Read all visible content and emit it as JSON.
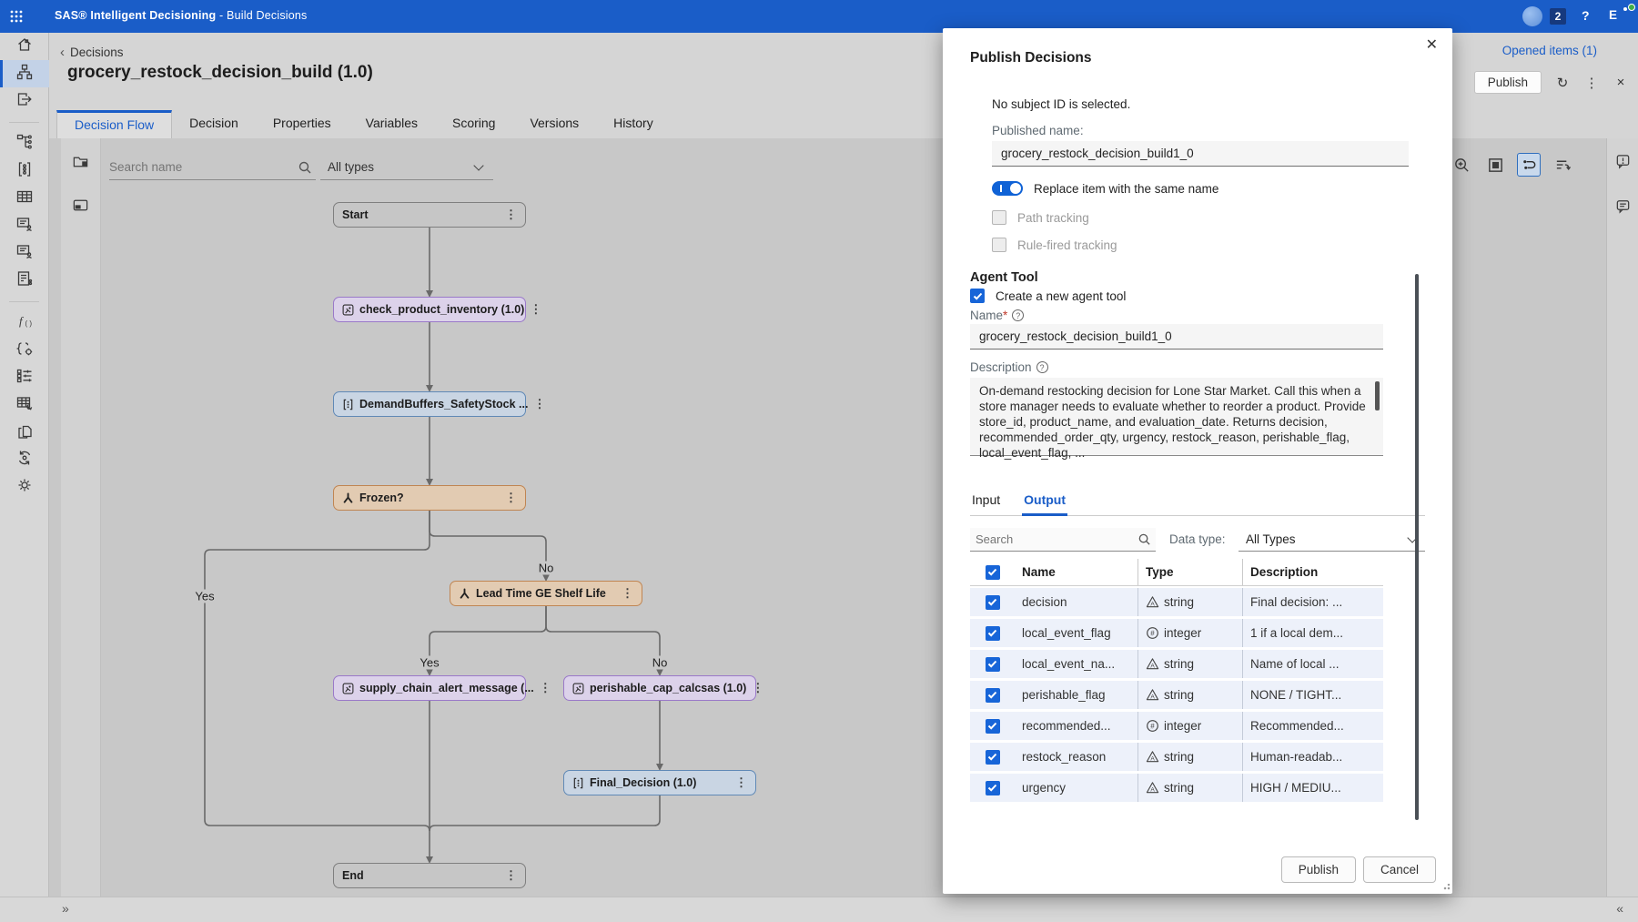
{
  "colors": {
    "accent": "#1a5dc8",
    "toggle_on": "#0f62d6",
    "checkbox": "#1765d8",
    "status_green": "#3fae49",
    "node_code": "#dcd2ea",
    "node_rule": "#c9d5e3",
    "node_branch": "#e2cbb2",
    "node_terminal": "#c6c6c6"
  },
  "topbar": {
    "app_title_bold": "SAS® Intelligent Decisioning",
    "app_title_rest": " - Build Decisions",
    "notifications_count": "2",
    "help_label": "?",
    "user_initial": "E"
  },
  "sidebar": {
    "items": [
      {
        "icon": "home",
        "name": "home"
      },
      {
        "icon": "flow",
        "name": "build-decisions",
        "active": true
      },
      {
        "icon": "export",
        "name": "publish-items"
      },
      {
        "divider": true
      },
      {
        "icon": "tree",
        "name": "decision-hierarchy"
      },
      {
        "icon": "ruleset",
        "name": "rule-sets"
      },
      {
        "icon": "grid",
        "name": "lookup-tables"
      },
      {
        "icon": "docuser",
        "name": "subject-contacts"
      },
      {
        "icon": "docuser",
        "name": "subject-records"
      },
      {
        "icon": "doclist",
        "name": "record-lists"
      },
      {
        "divider": true
      },
      {
        "icon": "fx",
        "name": "functions"
      },
      {
        "icon": "codegear",
        "name": "code-files"
      },
      {
        "icon": "sliders",
        "name": "global-variables"
      },
      {
        "icon": "gridwrench",
        "name": "data-tools"
      },
      {
        "icon": "tags",
        "name": "tags"
      },
      {
        "icon": "geararrows",
        "name": "workflows"
      },
      {
        "icon": "gear",
        "name": "settings"
      }
    ]
  },
  "header": {
    "breadcrumb": "Decisions",
    "title": "grocery_restock_decision_build (1.0)",
    "opened_items": "Opened items (1)",
    "publish_button": "Publish",
    "tabs": [
      {
        "label": "Decision Flow",
        "active": true
      },
      {
        "label": "Decision"
      },
      {
        "label": "Properties"
      },
      {
        "label": "Variables"
      },
      {
        "label": "Scoring"
      },
      {
        "label": "Versions"
      },
      {
        "label": "History"
      }
    ]
  },
  "canvas": {
    "search_placeholder": "Search name",
    "type_filter_value": "All types"
  },
  "flow": {
    "nodes": [
      {
        "id": "start",
        "label": "Start",
        "kind": "start"
      },
      {
        "id": "check",
        "label": "check_product_inventory (1.0)",
        "kind": "code"
      },
      {
        "id": "demand",
        "label": "DemandBuffers_SafetyStock ...",
        "kind": "rule"
      },
      {
        "id": "frozen",
        "label": "Frozen?",
        "kind": "branch"
      },
      {
        "id": "lead",
        "label": "Lead Time GE Shelf Life",
        "kind": "branch"
      },
      {
        "id": "supply",
        "label": "supply_chain_alert_message (...",
        "kind": "code"
      },
      {
        "id": "perishable",
        "label": "perishable_cap_calcsas (1.0)",
        "kind": "code"
      },
      {
        "id": "final",
        "label": "Final_Decision (1.0)",
        "kind": "rule"
      },
      {
        "id": "end",
        "label": "End",
        "kind": "end"
      }
    ],
    "edge_labels": [
      {
        "id": "frozen-yes",
        "text": "Yes"
      },
      {
        "id": "frozen-no",
        "text": "No"
      },
      {
        "id": "lead-yes",
        "text": "Yes"
      },
      {
        "id": "lead-no",
        "text": "No"
      }
    ]
  },
  "bottombar": {
    "collapse_left": "»",
    "collapse_right": "«"
  },
  "modal": {
    "title": "Publish Decisions",
    "subject_note": "No subject ID is selected.",
    "published_name_label": "Published name:",
    "published_name_value": "grocery_restock_decision_build1_0",
    "replace_toggle_label": "Replace item with the same name",
    "path_tracking_label": "Path tracking",
    "rule_fired_label": "Rule-fired tracking",
    "agent_tool_heading": "Agent Tool",
    "create_agent_label": "Create a new agent tool",
    "name_label": "Name",
    "name_required": "*",
    "name_value": "grocery_restock_decision_build1_0",
    "description_label": "Description",
    "description_value": "On-demand restocking decision for Lone Star Market. Call this when a store manager needs to evaluate whether to reorder a product. Provide store_id, product_name, and evaluation_date. Returns decision, recommended_order_qty, urgency, restock_reason, perishable_flag, local_event_flag, ...",
    "tabs": [
      {
        "label": "Input"
      },
      {
        "label": "Output",
        "active": true
      }
    ],
    "search_placeholder": "Search",
    "data_type_label": "Data type:",
    "data_type_value": "All Types",
    "table": {
      "columns": [
        "Name",
        "Type",
        "Description"
      ],
      "rows": [
        {
          "checked": true,
          "name": "decision",
          "type": "string",
          "description": "Final decision: ..."
        },
        {
          "checked": true,
          "name": "local_event_flag",
          "type": "integer",
          "description": "1 if a local dem..."
        },
        {
          "checked": true,
          "name": "local_event_na...",
          "type": "string",
          "description": "Name of local ..."
        },
        {
          "checked": true,
          "name": "perishable_flag",
          "type": "string",
          "description": "NONE / TIGHT..."
        },
        {
          "checked": true,
          "name": "recommended...",
          "type": "integer",
          "description": "Recommended..."
        },
        {
          "checked": true,
          "name": "restock_reason",
          "type": "string",
          "description": "Human-readab..."
        },
        {
          "checked": true,
          "name": "urgency",
          "type": "string",
          "description": "HIGH / MEDIU..."
        }
      ]
    },
    "publish_button": "Publish",
    "cancel_button": "Cancel"
  }
}
